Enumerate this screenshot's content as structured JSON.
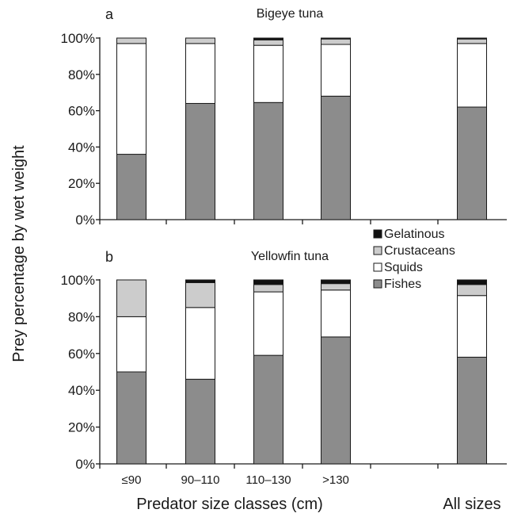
{
  "chart_data": [
    {
      "type": "bar",
      "stacked": true,
      "panel": "a",
      "title": "Bigeye tuna",
      "ylim": [
        0,
        100
      ],
      "yticks": [
        "0%",
        "20%",
        "40%",
        "60%",
        "80%",
        "100%"
      ],
      "categories": [
        "≤90",
        "90–110",
        "110–130",
        ">130",
        "All sizes"
      ],
      "series": [
        {
          "name": "Fishes",
          "color": "#8c8c8c",
          "values": [
            36,
            64,
            64.5,
            68,
            62
          ]
        },
        {
          "name": "Squids",
          "color": "#ffffff",
          "values": [
            61,
            33,
            31.5,
            28.5,
            35
          ]
        },
        {
          "name": "Crustaceans",
          "color": "#cccccc",
          "values": [
            3,
            3,
            3,
            3,
            2.5
          ]
        },
        {
          "name": "Gelatinous",
          "color": "#111111",
          "values": [
            0,
            0,
            1,
            0.5,
            0.5
          ]
        }
      ]
    },
    {
      "type": "bar",
      "stacked": true,
      "panel": "b",
      "title": "Yellowfin tuna",
      "ylim": [
        0,
        100
      ],
      "yticks": [
        "0%",
        "20%",
        "40%",
        "60%",
        "80%",
        "100%"
      ],
      "categories": [
        "≤90",
        "90–110",
        "110–130",
        ">130",
        "All sizes"
      ],
      "series": [
        {
          "name": "Fishes",
          "color": "#8c8c8c",
          "values": [
            50,
            46,
            59,
            69,
            58
          ]
        },
        {
          "name": "Squids",
          "color": "#ffffff",
          "values": [
            30,
            39,
            34.5,
            25.5,
            33.5
          ]
        },
        {
          "name": "Crustaceans",
          "color": "#cccccc",
          "values": [
            20,
            13.5,
            4,
            3.5,
            6
          ]
        },
        {
          "name": "Gelatinous",
          "color": "#111111",
          "values": [
            0,
            1.5,
            2.5,
            2,
            2.5
          ]
        }
      ]
    }
  ],
  "axes": {
    "ylabel": "Prey percentage by wet weight",
    "xlabel": "Predator size classes (cm)",
    "x_extra_label": "All sizes"
  },
  "legend": {
    "placement": "top-right of panel b",
    "entries": [
      "Gelatinous",
      "Crustaceans",
      "Squids",
      "Fishes"
    ]
  }
}
